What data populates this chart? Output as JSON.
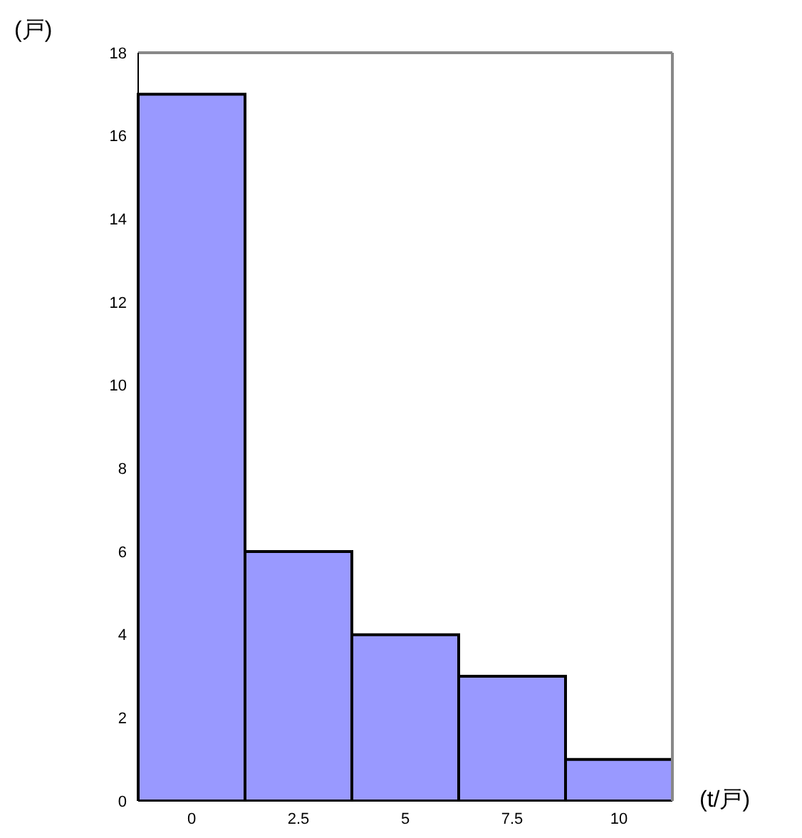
{
  "chart_data": {
    "type": "bar",
    "ylabel": "(戸)",
    "xlabel": "(t/戸)",
    "categories": [
      "0",
      "2.5",
      "5",
      "7.5",
      "10"
    ],
    "values": [
      17,
      6,
      4,
      3,
      1
    ],
    "color": "#9999ff",
    "ylim": [
      0,
      18
    ],
    "yticks": [
      0,
      2,
      4,
      6,
      8,
      10,
      12,
      14,
      16,
      18
    ]
  }
}
